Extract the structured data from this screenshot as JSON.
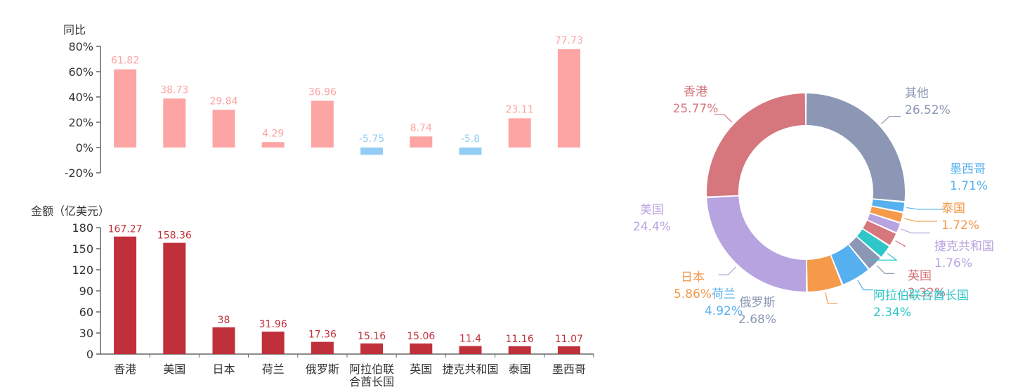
{
  "colors": {
    "yoy_positive": "#fda4a4",
    "yoy_negative": "#93cdf5",
    "amount_bar": "#c0303a",
    "axis": "#666666",
    "label_text": "#333333"
  },
  "chart_data": [
    {
      "type": "bar",
      "ylabel": "同比",
      "categories": [
        "香港",
        "美国",
        "日本",
        "荷兰",
        "俄罗斯",
        "阿拉伯联合酋长国",
        "英国",
        "捷克共和国",
        "泰国",
        "墨西哥"
      ],
      "values": [
        61.82,
        38.73,
        29.84,
        4.29,
        36.96,
        -5.75,
        8.74,
        -5.8,
        23.11,
        77.73
      ],
      "value_labels": [
        "61.82",
        "38.73",
        "29.84",
        "4.29",
        "36.96",
        "-5.75",
        "8.74",
        "-5.8",
        "23.11",
        "77.73"
      ],
      "ylim": [
        -20,
        80
      ],
      "yticks": [
        "80%",
        "60%",
        "40%",
        "20%",
        "0%",
        "-20%"
      ]
    },
    {
      "type": "bar",
      "ylabel": "金额（亿美元）",
      "categories": [
        "香港",
        "美国",
        "日本",
        "荷兰",
        "俄罗斯",
        "阿拉伯联合酋长国",
        "英国",
        "捷克共和国",
        "泰国",
        "墨西哥"
      ],
      "category_labels": [
        "香港",
        "美国",
        "日本",
        "荷兰",
        "俄罗斯",
        "阿拉伯联\n合酋长国",
        "英国",
        "捷克共和国",
        "泰国",
        "墨西哥"
      ],
      "values": [
        167.27,
        158.36,
        38,
        31.96,
        17.36,
        15.16,
        15.06,
        11.4,
        11.16,
        11.07
      ],
      "value_labels": [
        "167.27",
        "158.36",
        "38",
        "31.96",
        "17.36",
        "15.16",
        "15.06",
        "11.4",
        "11.16",
        "11.07"
      ],
      "ylim": [
        0,
        180
      ],
      "yticks": [
        "180",
        "150",
        "120",
        "90",
        "60",
        "30",
        "0"
      ]
    },
    {
      "type": "pie",
      "donut": true,
      "slices": [
        {
          "name": "其他",
          "value": 26.52,
          "label": "26.52%",
          "color": "#8b97b4"
        },
        {
          "name": "墨西哥",
          "value": 1.71,
          "label": "1.71%",
          "color": "#56b0ef"
        },
        {
          "name": "泰国",
          "value": 1.72,
          "label": "1.72%",
          "color": "#f49a4a"
        },
        {
          "name": "捷克共和国",
          "value": 1.76,
          "label": "1.76%",
          "color": "#b7a3e0"
        },
        {
          "name": "英国",
          "value": 2.32,
          "label": "2.32%",
          "color": "#d6767d"
        },
        {
          "name": "阿拉伯联合酋长国",
          "value": 2.34,
          "label": "2.34%",
          "color": "#2ec6c8"
        },
        {
          "name": "俄罗斯",
          "value": 2.68,
          "label": "2.68%",
          "color": "#8b97b4"
        },
        {
          "name": "荷兰",
          "value": 4.92,
          "label": "4.92%",
          "color": "#56b0ef"
        },
        {
          "name": "日本",
          "value": 5.86,
          "label": "5.86%",
          "color": "#f49a4a"
        },
        {
          "name": "美国",
          "value": 24.4,
          "label": "24.4%",
          "color": "#b7a3e0"
        },
        {
          "name": "香港",
          "value": 25.77,
          "label": "25.77%",
          "color": "#d6767d"
        }
      ]
    }
  ]
}
